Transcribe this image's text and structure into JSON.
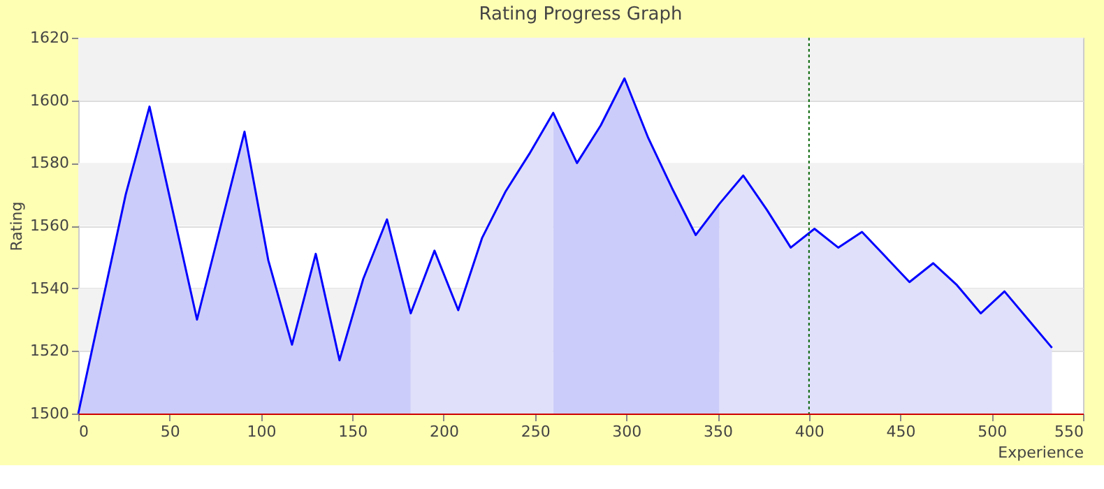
{
  "chart_data": {
    "type": "area",
    "title": "Rating Progress Graph",
    "xlabel": "Experience",
    "ylabel": "Rating",
    "x": [
      0,
      26,
      39,
      65,
      91,
      104,
      117,
      130,
      143,
      156,
      169,
      182,
      195,
      208,
      221,
      234,
      247,
      260,
      273,
      286,
      299,
      312,
      325,
      338,
      351,
      364,
      377,
      390,
      403,
      416,
      429,
      442,
      455,
      468,
      481,
      494,
      507,
      520,
      533
    ],
    "series": [
      {
        "type": "area",
        "color": "#ccccfa",
        "values": [
          1500,
          1570,
          1598,
          1530,
          1590,
          1549,
          1522,
          1551,
          1517,
          1543,
          1562,
          1532,
          null,
          null,
          null,
          null,
          null,
          1596,
          1580,
          1592,
          1607,
          1588,
          1572,
          1557,
          1567,
          null,
          null,
          null,
          null,
          null,
          null,
          null,
          null,
          null,
          null,
          null,
          null,
          null,
          null
        ]
      },
      {
        "type": "area",
        "color": "#e0e0fa",
        "values": [
          null,
          null,
          null,
          null,
          null,
          null,
          null,
          null,
          null,
          null,
          null,
          1532,
          1552,
          1533,
          1556,
          1571,
          1583,
          1596,
          null,
          null,
          null,
          null,
          null,
          null,
          1567,
          1576,
          1565,
          1553,
          1559,
          1553,
          1558,
          1550,
          1542,
          1548,
          1541,
          1532,
          1539,
          1530,
          1521
        ]
      },
      {
        "type": "line",
        "color": "#0000ff",
        "values": [
          1500,
          1570,
          1598,
          1530,
          1590,
          1549,
          1522,
          1551,
          1517,
          1543,
          1562,
          1532,
          1552,
          1533,
          1556,
          1571,
          1583,
          1596,
          1580,
          1592,
          1607,
          1588,
          1572,
          1557,
          1567,
          1576,
          1565,
          1553,
          1559,
          1553,
          1558,
          1550,
          1542,
          1548,
          1541,
          1532,
          1539,
          1530,
          1521
        ]
      }
    ],
    "xlim": [
      0,
      550
    ],
    "xticks": [
      0,
      50,
      100,
      150,
      200,
      250,
      300,
      350,
      400,
      450,
      500,
      550
    ],
    "ylim": [
      1500,
      1620
    ],
    "yticks": [
      1500,
      1520,
      1540,
      1560,
      1580,
      1600,
      1620
    ],
    "bands": [
      {
        "axis": "y",
        "from": 1520,
        "to": 1540,
        "color": "#f2f2f2"
      },
      {
        "axis": "y",
        "from": 1560,
        "to": 1580,
        "color": "#f2f2f2"
      },
      {
        "axis": "y",
        "from": 1600,
        "to": 1620,
        "color": "#f2f2f2"
      }
    ],
    "ref_lines": [
      {
        "axis": "x",
        "value": 400,
        "color": "#006400",
        "line_style": "dotted"
      }
    ],
    "grid": "y",
    "legend": false
  }
}
